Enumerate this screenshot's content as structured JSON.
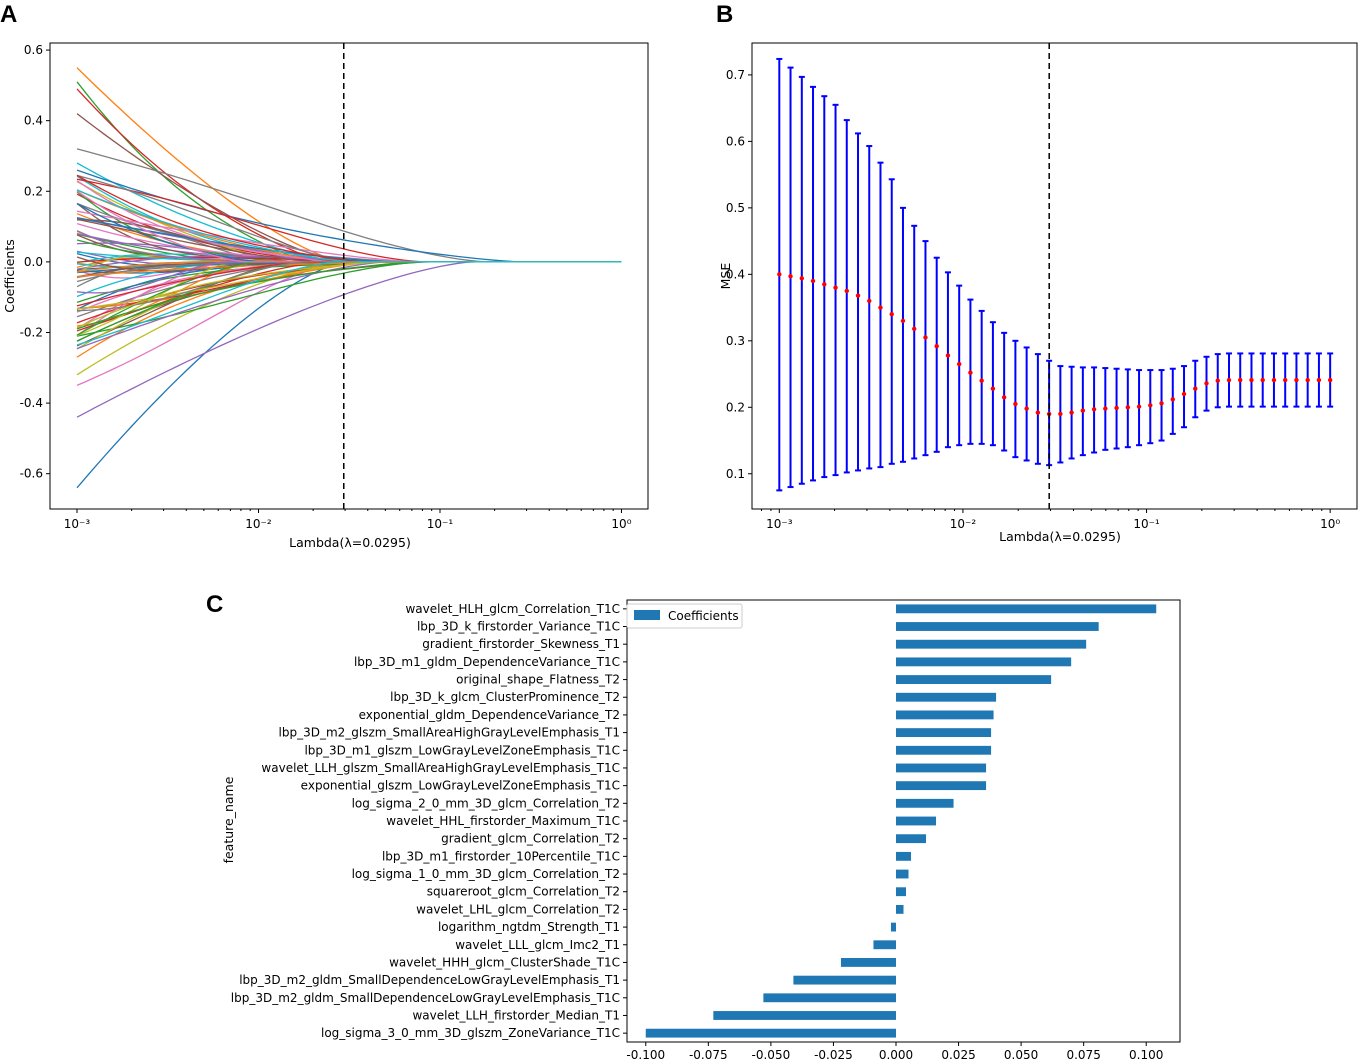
{
  "panels": {
    "a": "A",
    "b": "B",
    "c": "C"
  },
  "colors": {
    "axis": "#000000",
    "dashed": "#000000",
    "errorbar": "#0000ff",
    "mean_marker": "#ff0000",
    "bar": "#1f77b4",
    "series_cycle": [
      "#1f77b4",
      "#ff7f0e",
      "#2ca02c",
      "#d62728",
      "#9467bd",
      "#8c564b",
      "#e377c2",
      "#7f7f7f",
      "#bcbd22",
      "#17becf"
    ]
  },
  "chart_data": [
    {
      "id": "A",
      "type": "line",
      "title": "",
      "xlabel": "Lambda(λ=0.0295)",
      "ylabel": "Coefficients",
      "xscale": "log",
      "xlim": [
        0.001,
        1
      ],
      "ylim": [
        -0.7,
        0.62
      ],
      "xticks": [
        0.001,
        0.01,
        0.1,
        1
      ],
      "xtick_labels": [
        "10⁻³",
        "10⁻²",
        "10⁻¹",
        "10⁰"
      ],
      "yticks": [
        -0.6,
        -0.4,
        -0.2,
        0.0,
        0.2,
        0.4,
        0.6
      ],
      "ytick_labels": [
        "-0.6",
        "-0.4",
        "-0.2",
        "0.0",
        "0.2",
        "0.4",
        "0.6"
      ],
      "vline": 0.0295,
      "series_count": 90,
      "series": [
        {
          "start": -0.64,
          "shape": "rise_fast",
          "end_lambda": 0.03
        },
        {
          "start": 0.55,
          "shape": "fall_fast",
          "end_lambda": 0.03
        },
        {
          "start": 0.51,
          "shape": "fall_late",
          "end_lambda": 0.02
        },
        {
          "start": 0.49,
          "shape": "fall_fast",
          "end_lambda": 0.025
        },
        {
          "start": -0.44,
          "shape": "rise",
          "end_lambda": 0.15
        },
        {
          "start": 0.42,
          "shape": "fall",
          "end_lambda": 0.03
        },
        {
          "start": -0.35,
          "shape": "rise",
          "end_lambda": 0.03
        },
        {
          "start": 0.32,
          "shape": "bump_pos",
          "end_lambda": 0.18
        },
        {
          "start": -0.32,
          "shape": "dip_neg",
          "end_lambda": 0.03
        },
        {
          "start": 0.28,
          "shape": "fall",
          "end_lambda": 0.03
        },
        {
          "start": 0.26,
          "shape": "bump_cyan",
          "end_lambda": 0.28
        },
        {
          "start": -0.27,
          "shape": "rise",
          "end_lambda": 0.03
        }
      ]
    },
    {
      "id": "B",
      "type": "errorbar",
      "title": "",
      "xlabel": "Lambda(λ=0.0295)",
      "ylabel": "MSE",
      "xscale": "log",
      "xlim": [
        0.00071,
        1.4
      ],
      "ylim": [
        0.047,
        0.748
      ],
      "xticks": [
        0.001,
        0.01,
        0.1,
        1
      ],
      "xtick_labels": [
        "10⁻³",
        "10⁻²",
        "10⁻¹",
        "10⁰"
      ],
      "yticks": [
        0.1,
        0.2,
        0.3,
        0.4,
        0.5,
        0.6,
        0.7
      ],
      "ytick_labels": [
        "0.1",
        "0.2",
        "0.3",
        "0.4",
        "0.5",
        "0.6",
        "0.7"
      ],
      "vline": 0.0295,
      "x": [
        0.001,
        0.001151,
        0.001326,
        0.001526,
        0.001758,
        0.002024,
        0.00233,
        0.002683,
        0.003089,
        0.003556,
        0.004095,
        0.004715,
        0.005429,
        0.006251,
        0.007197,
        0.008286,
        0.009541,
        0.010985,
        0.012649,
        0.014563,
        0.016768,
        0.019307,
        0.02223,
        0.025595,
        0.029471,
        0.033932,
        0.039069,
        0.044984,
        0.051795,
        0.059636,
        0.068665,
        0.07906,
        0.091029,
        0.104811,
        0.120679,
        0.13895,
        0.159986,
        0.184207,
        0.212095,
        0.244205,
        0.281177,
        0.323746,
        0.372759,
        0.429193,
        0.494171,
        0.568987,
        0.655129,
        0.754312,
        0.868511,
        1.0
      ],
      "mean": [
        0.4,
        0.397,
        0.394,
        0.39,
        0.385,
        0.38,
        0.375,
        0.368,
        0.36,
        0.35,
        0.34,
        0.33,
        0.318,
        0.305,
        0.292,
        0.278,
        0.265,
        0.252,
        0.24,
        0.228,
        0.215,
        0.205,
        0.198,
        0.192,
        0.19,
        0.19,
        0.192,
        0.195,
        0.197,
        0.198,
        0.199,
        0.2,
        0.201,
        0.203,
        0.206,
        0.212,
        0.22,
        0.228,
        0.236,
        0.24,
        0.241,
        0.241,
        0.241,
        0.241,
        0.241,
        0.241,
        0.241,
        0.241,
        0.241,
        0.241
      ],
      "upper": [
        0.724,
        0.711,
        0.697,
        0.682,
        0.668,
        0.655,
        0.632,
        0.612,
        0.593,
        0.568,
        0.543,
        0.5,
        0.473,
        0.45,
        0.425,
        0.403,
        0.383,
        0.362,
        0.345,
        0.328,
        0.312,
        0.3,
        0.29,
        0.28,
        0.27,
        0.262,
        0.261,
        0.26,
        0.26,
        0.259,
        0.258,
        0.257,
        0.256,
        0.256,
        0.256,
        0.258,
        0.262,
        0.27,
        0.276,
        0.28,
        0.281,
        0.281,
        0.281,
        0.281,
        0.281,
        0.281,
        0.281,
        0.281,
        0.281,
        0.281
      ],
      "lower": [
        0.075,
        0.08,
        0.085,
        0.09,
        0.095,
        0.098,
        0.102,
        0.105,
        0.108,
        0.11,
        0.115,
        0.118,
        0.123,
        0.128,
        0.133,
        0.14,
        0.143,
        0.145,
        0.145,
        0.143,
        0.135,
        0.125,
        0.12,
        0.115,
        0.113,
        0.117,
        0.123,
        0.128,
        0.132,
        0.136,
        0.138,
        0.14,
        0.143,
        0.146,
        0.15,
        0.16,
        0.17,
        0.185,
        0.195,
        0.2,
        0.201,
        0.201,
        0.201,
        0.201,
        0.201,
        0.201,
        0.201,
        0.201,
        0.201,
        0.201
      ]
    },
    {
      "id": "C",
      "type": "bar",
      "orientation": "horizontal",
      "title": "",
      "xlabel": "",
      "ylabel": "feature_name",
      "legend": [
        "Coefficients"
      ],
      "legend_position": "top-left",
      "xlim": [
        -0.1075,
        0.1135
      ],
      "xticks": [
        -0.1,
        -0.075,
        -0.05,
        -0.025,
        0.0,
        0.025,
        0.05,
        0.075,
        0.1
      ],
      "xtick_labels": [
        "-0.100",
        "-0.075",
        "-0.050",
        "-0.025",
        "0.000",
        "0.025",
        "0.050",
        "0.075",
        "0.100"
      ],
      "categories": [
        "wavelet_HLH_glcm_Correlation_T1C",
        "lbp_3D_k_firstorder_Variance_T1C",
        "gradient_firstorder_Skewness_T1",
        "lbp_3D_m1_gldm_DependenceVariance_T1C",
        "original_shape_Flatness_T2",
        "lbp_3D_k_glcm_ClusterProminence_T2",
        "exponential_gldm_DependenceVariance_T2",
        "lbp_3D_m2_glszm_SmallAreaHighGrayLevelEmphasis_T1",
        "lbp_3D_m1_glszm_LowGrayLevelZoneEmphasis_T1C",
        "wavelet_LLH_glszm_SmallAreaHighGrayLevelEmphasis_T1C",
        "exponential_glszm_LowGrayLevelZoneEmphasis_T1C",
        "log_sigma_2_0_mm_3D_glcm_Correlation_T2",
        "wavelet_HHL_firstorder_Maximum_T1C",
        "gradient_glcm_Correlation_T2",
        "lbp_3D_m1_firstorder_10Percentile_T1C",
        "log_sigma_1_0_mm_3D_glcm_Correlation_T2",
        "squareroot_glcm_Correlation_T2",
        "wavelet_LHL_glcm_Correlation_T2",
        "logarithm_ngtdm_Strength_T1",
        "wavelet_LLL_glcm_Imc2_T1",
        "wavelet_HHH_glcm_ClusterShade_T1C",
        "lbp_3D_m2_gldm_SmallDependenceLowGrayLevelEmphasis_T1",
        "lbp_3D_m2_gldm_SmallDependenceLowGrayLevelEmphasis_T1C",
        "wavelet_LLH_firstorder_Median_T1",
        "log_sigma_3_0_mm_3D_glszm_ZoneVariance_T1C"
      ],
      "values": [
        0.104,
        0.081,
        0.076,
        0.07,
        0.062,
        0.04,
        0.039,
        0.038,
        0.038,
        0.036,
        0.036,
        0.023,
        0.016,
        0.012,
        0.006,
        0.005,
        0.004,
        0.003,
        -0.002,
        -0.009,
        -0.022,
        -0.041,
        -0.053,
        -0.073,
        -0.1
      ]
    }
  ]
}
